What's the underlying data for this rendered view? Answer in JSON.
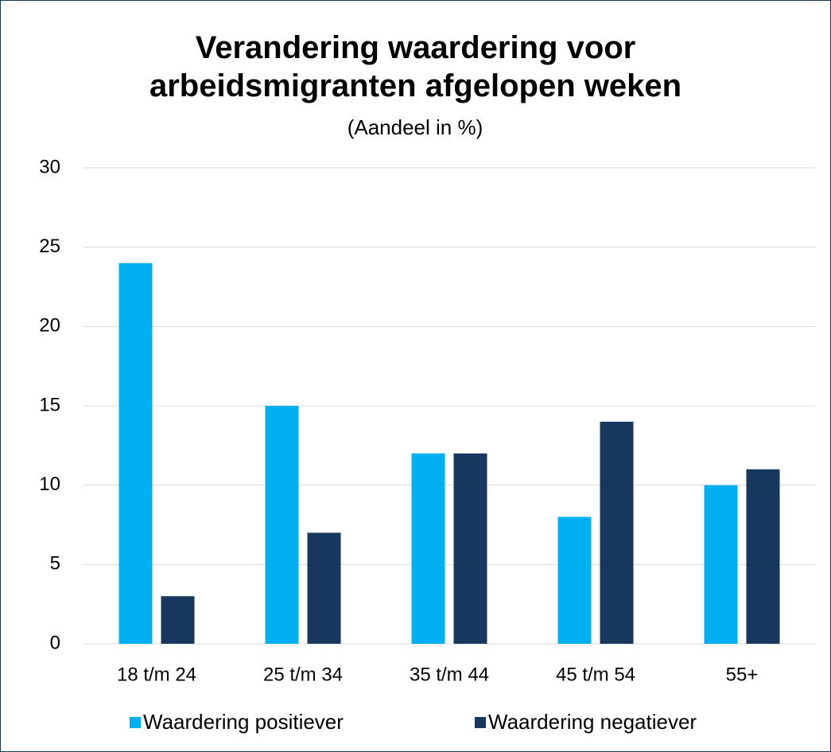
{
  "chart_data": {
    "type": "bar",
    "title": "Verandering waardering voor arbeidsmigranten afgelopen weken",
    "subtitle": "(Aandeel in %)",
    "categories": [
      "18 t/m 24",
      "25 t/m 34",
      "35 t/m 44",
      "45 t/m 54",
      "55+"
    ],
    "series": [
      {
        "name": "Waardering positiever",
        "color": "#00b0f0",
        "values": [
          24,
          15,
          12,
          8,
          10
        ]
      },
      {
        "name": "Waardering negatiever",
        "color": "#17375e",
        "values": [
          3,
          7,
          12,
          14,
          11
        ]
      }
    ],
    "ylim": [
      0,
      30
    ],
    "yticks": [
      0,
      5,
      10,
      15,
      20,
      25,
      30
    ],
    "grid": true,
    "legend": "bottom"
  }
}
